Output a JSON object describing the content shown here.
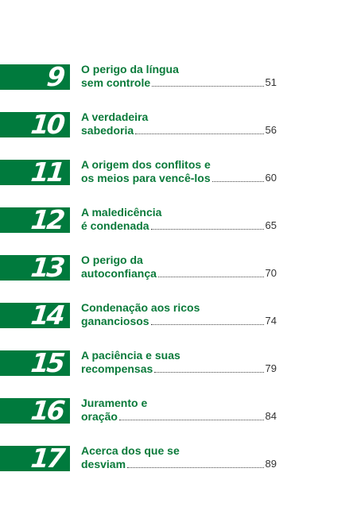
{
  "entries": [
    {
      "number": "9",
      "line1": "O perigo da língua",
      "line2": "sem controle",
      "page": "51"
    },
    {
      "number": "10",
      "line1": "A verdadeira",
      "line2": "sabedoria",
      "page": "56"
    },
    {
      "number": "11",
      "line1": "A origem dos conflitos e",
      "line2": "os meios para vencê-los",
      "page": "60"
    },
    {
      "number": "12",
      "line1": "A maledicência",
      "line2": "é condenada",
      "page": "65"
    },
    {
      "number": "13",
      "line1": "O perigo da",
      "line2": "autoconfiança",
      "page": "70"
    },
    {
      "number": "14",
      "line1": "Condenação aos ricos",
      "line2": "gananciosos",
      "page": "74"
    },
    {
      "number": "15",
      "line1": "A paciência e suas",
      "line2": "recompensas",
      "page": "79"
    },
    {
      "number": "16",
      "line1": "Juramento e",
      "line2": "oração",
      "page": "84"
    },
    {
      "number": "17",
      "line1": "Acerca dos que se",
      "line2": "desviam",
      "page": "89"
    }
  ],
  "colors": {
    "accent_green": "#007a3d",
    "title_green": "#0a7a3a",
    "number_text": "#ffffff",
    "page_text": "#333333"
  }
}
